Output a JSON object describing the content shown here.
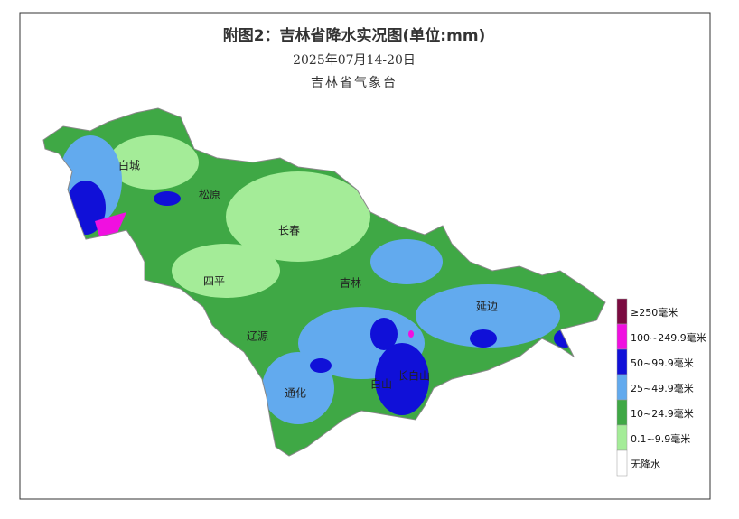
{
  "title": "附图2：吉林省降水实况图(单位:mm)",
  "date": "2025年07月14-20日",
  "agency": "吉林省气象台",
  "cities": [
    "白城",
    "松原",
    "长春",
    "四平",
    "吉林",
    "辽源",
    "延边",
    "通化",
    "白山",
    "长白山"
  ],
  "legend": [
    {
      "label": "≥250毫米",
      "color": "#7a0a40"
    },
    {
      "label": "100~249.9毫米",
      "color": "#f010e0"
    },
    {
      "label": "50~99.9毫米",
      "color": "#1010d8"
    },
    {
      "label": "25~49.9毫米",
      "color": "#62aaee"
    },
    {
      "label": "10~24.9毫米",
      "color": "#3fa845"
    },
    {
      "label": "0.1~9.9毫米",
      "color": "#a4ec98"
    },
    {
      "label": "无降水",
      "color": "#ffffff"
    }
  ]
}
